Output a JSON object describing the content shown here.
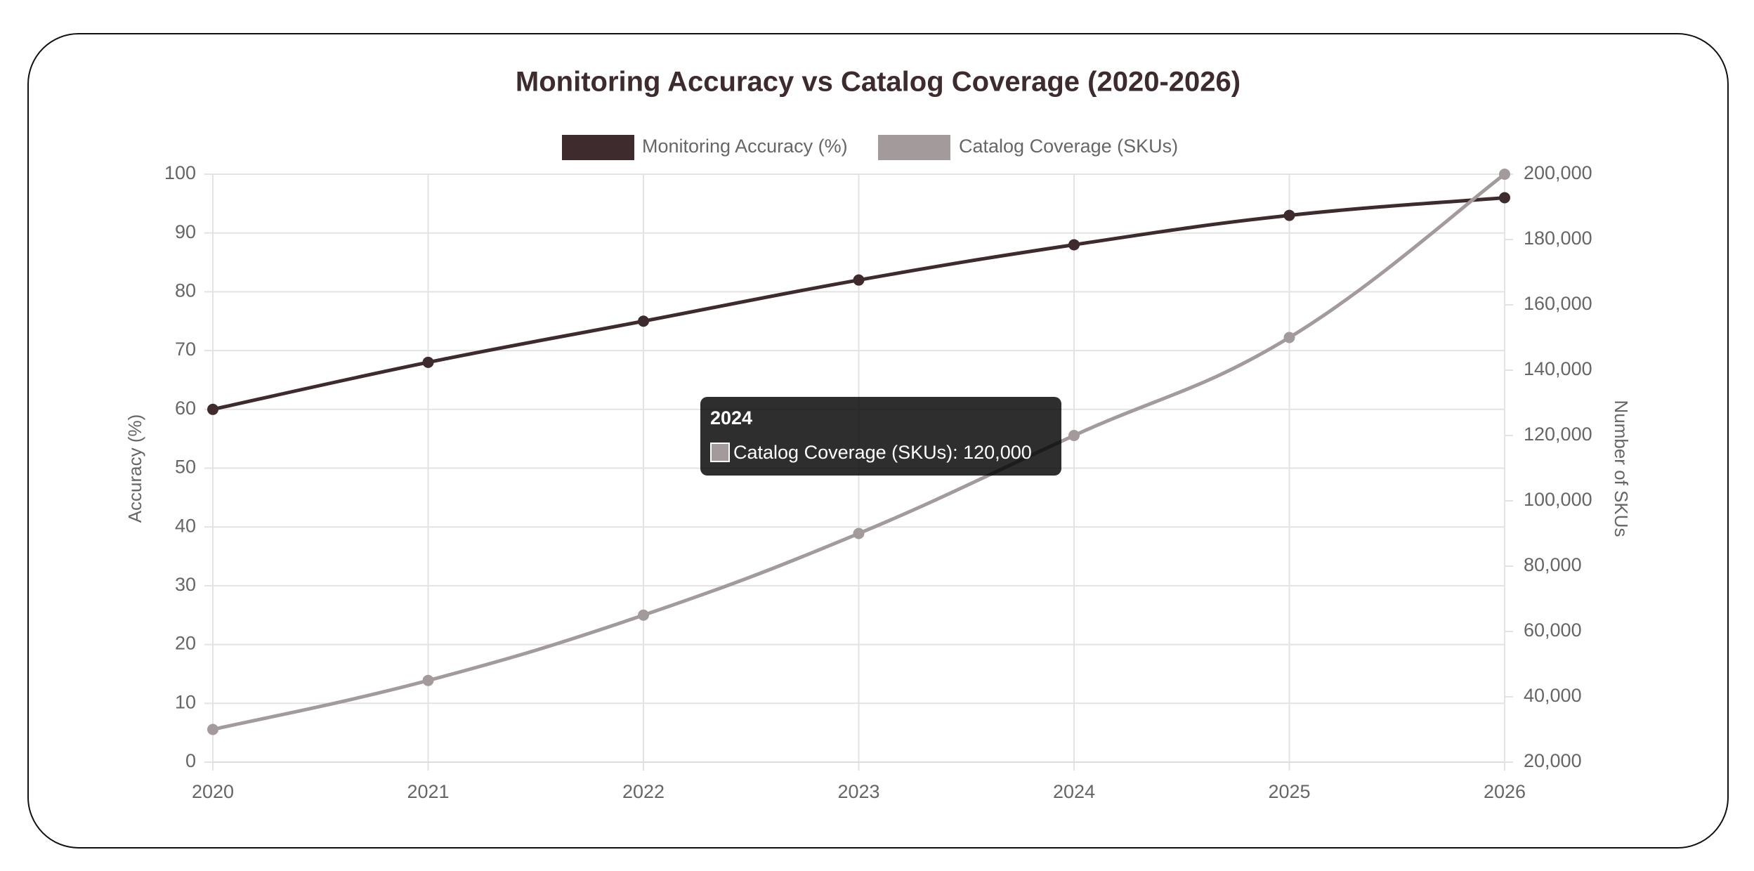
{
  "chart_data": {
    "type": "line",
    "title": "Monitoring Accuracy vs Catalog Coverage (2020-2026)",
    "categories": [
      "2020",
      "2021",
      "2022",
      "2023",
      "2024",
      "2025",
      "2026"
    ],
    "series": [
      {
        "name": "Monitoring Accuracy (%)",
        "color": "#3d2b2e",
        "values": [
          60,
          68,
          75,
          82,
          88,
          93,
          96
        ]
      },
      {
        "name": "Catalog Coverage (SKUs)",
        "color": "#a39a9b",
        "axis": "y2",
        "values": [
          30000,
          45000,
          65000,
          90000,
          120000,
          150000,
          200000
        ]
      }
    ],
    "ylabel": "Accuracy (%)",
    "y2label": "Number of SKUs",
    "ylim": [
      0,
      100
    ],
    "yticks": [
      0,
      10,
      20,
      30,
      40,
      50,
      60,
      70,
      80,
      90,
      100
    ],
    "y2lim": [
      20000,
      200000
    ],
    "y2ticks": [
      {
        "value": 20000,
        "label": "20,000"
      },
      {
        "value": 40000,
        "label": "40,000"
      },
      {
        "value": 60000,
        "label": "60,000"
      },
      {
        "value": 80000,
        "label": "80,000"
      },
      {
        "value": 100000,
        "label": "100,000"
      },
      {
        "value": 120000,
        "label": "120,000"
      },
      {
        "value": 140000,
        "label": "140,000"
      },
      {
        "value": 160000,
        "label": "160,000"
      },
      {
        "value": 180000,
        "label": "180,000"
      },
      {
        "value": 200000,
        "label": "200,000"
      }
    ],
    "grid": true,
    "legend": "top",
    "tooltip": {
      "title": "2024",
      "label": "Catalog Coverage (SKUs): 120,000"
    }
  }
}
